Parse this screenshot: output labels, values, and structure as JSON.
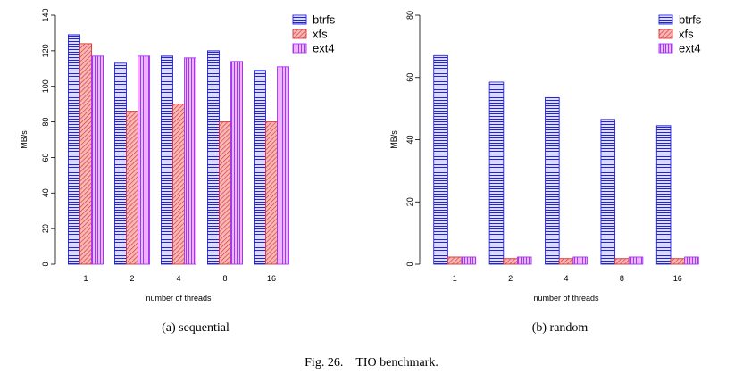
{
  "figure": {
    "caption": "Fig. 26. TIO benchmark."
  },
  "chart_data": [
    {
      "type": "bar",
      "caption": "(a) sequential",
      "xlabel": "number of threads",
      "ylabel": "MB/s",
      "ylim": [
        0,
        140
      ],
      "yticks": [
        0,
        20,
        40,
        60,
        80,
        100,
        120,
        140
      ],
      "categories": [
        "1",
        "2",
        "4",
        "8",
        "16"
      ],
      "legend_position": "top-right",
      "series": [
        {
          "name": "btrfs",
          "values": [
            129,
            113,
            117,
            120,
            109
          ],
          "color": "#2222dd",
          "pattern": "horizontal"
        },
        {
          "name": "xfs",
          "values": [
            124,
            86,
            90,
            80,
            80
          ],
          "color": "#dd3333",
          "pattern": "diagonal"
        },
        {
          "name": "ext4",
          "values": [
            117,
            117,
            116,
            114,
            111
          ],
          "color": "#aa33ee",
          "pattern": "vertical"
        }
      ]
    },
    {
      "type": "bar",
      "caption": "(b) random",
      "xlabel": "number of threads",
      "ylabel": "MB/s",
      "ylim": [
        0,
        80
      ],
      "yticks": [
        0,
        20,
        40,
        60,
        80
      ],
      "categories": [
        "1",
        "2",
        "4",
        "8",
        "16"
      ],
      "legend_position": "top-right",
      "series": [
        {
          "name": "btrfs",
          "values": [
            67,
            58.5,
            53.5,
            46.5,
            44.5
          ],
          "color": "#2222dd",
          "pattern": "horizontal"
        },
        {
          "name": "xfs",
          "values": [
            2.3,
            1.8,
            1.8,
            1.8,
            1.8
          ],
          "color": "#dd3333",
          "pattern": "diagonal"
        },
        {
          "name": "ext4",
          "values": [
            2.3,
            2.3,
            2.3,
            2.3,
            2.3
          ],
          "color": "#aa33ee",
          "pattern": "vertical"
        }
      ]
    }
  ]
}
